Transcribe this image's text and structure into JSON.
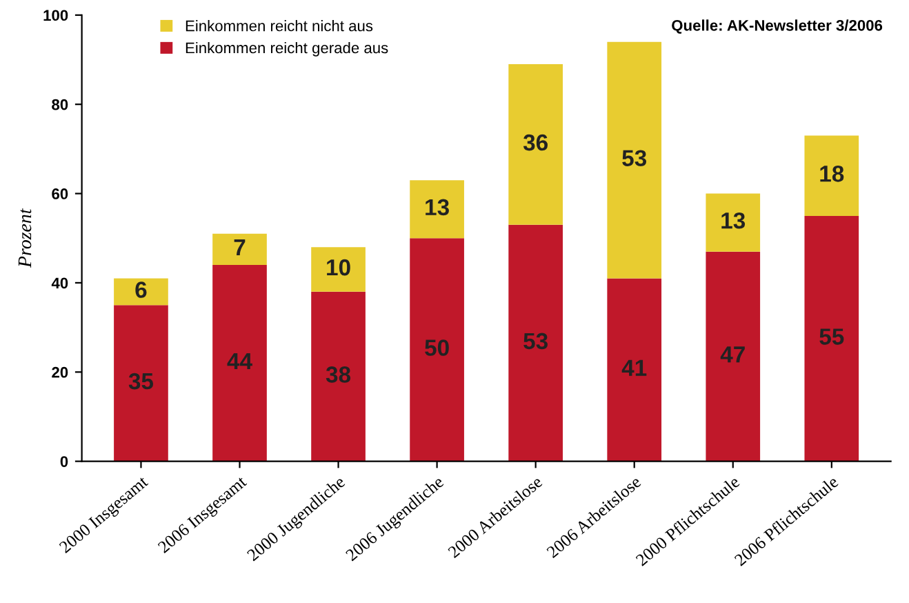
{
  "chart_data": {
    "type": "bar",
    "stacked": true,
    "ylabel": "Prozent",
    "categories": [
      "2000 Insgesamt",
      "2006 Insgesamt",
      "2000 Jugendliche",
      "2006 Jugendliche",
      "2000 Arbeitslose",
      "2006 Arbeitslose",
      "2000 Pflichtschule",
      "2006 Pflichtschule"
    ],
    "series": [
      {
        "name": "Einkommen reicht gerade aus",
        "color": "#c0182a",
        "values": [
          35,
          44,
          38,
          50,
          53,
          41,
          47,
          55
        ]
      },
      {
        "name": "Einkommen reicht nicht aus",
        "color": "#e8cc30",
        "values": [
          6,
          7,
          10,
          13,
          36,
          53,
          13,
          18
        ]
      }
    ],
    "ylim": [
      0,
      100
    ],
    "yticks": [
      0,
      20,
      40,
      60,
      80,
      100
    ],
    "grid": false,
    "legend": "top left",
    "data_labels": true,
    "annotations": [
      "Quelle: AK-Newsletter 3/2006"
    ]
  }
}
